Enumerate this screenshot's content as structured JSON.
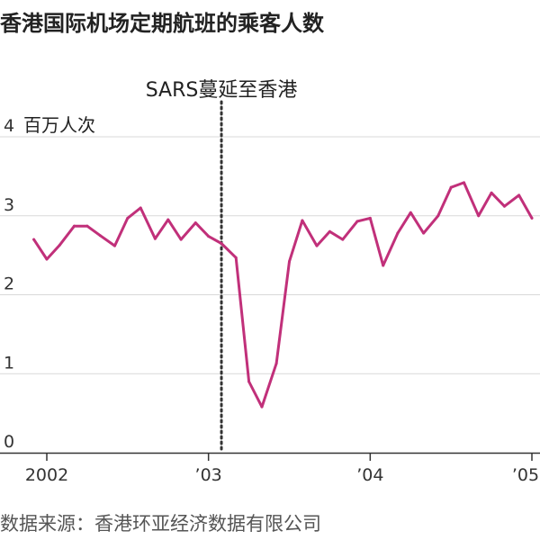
{
  "title": "香港国际机场定期航班的乘客人数",
  "source": "数据来源：香港环亚经济数据有限公司",
  "colors": {
    "series": "#c1307a",
    "grid": "#d9d9d9",
    "axis": "#333333",
    "annotation_line": "#333333"
  },
  "chart_data": {
    "type": "line",
    "title": "香港国际机场定期航班的乘客人数",
    "ylabel": "百万人次",
    "y_unit_label": "百万人次",
    "ylim": [
      0,
      4
    ],
    "yticks": [
      0,
      1,
      2,
      3,
      4
    ],
    "y_tick_labels": [
      "0",
      "1",
      "2",
      "3",
      "4"
    ],
    "xlim": [
      2001.9,
      2005.04
    ],
    "xticks": [
      2002,
      2003,
      2004,
      2005
    ],
    "x_tick_labels": [
      "2002",
      "’03",
      "’04",
      "’05"
    ],
    "grid": true,
    "series": [
      {
        "x": [
          2001.92,
          2002.0,
          2002.08,
          2002.17,
          2002.25,
          2002.33,
          2002.42,
          2002.5,
          2002.58,
          2002.67,
          2002.75,
          2002.83,
          2002.92,
          2003.0,
          2003.08,
          2003.17,
          2003.25,
          2003.33,
          2003.42,
          2003.5,
          2003.58,
          2003.67,
          2003.75,
          2003.83,
          2003.92,
          2004.0,
          2004.08,
          2004.17,
          2004.25,
          2004.33,
          2004.42,
          2004.5,
          2004.58,
          2004.67,
          2004.75,
          2004.83,
          2004.92,
          2005.0
        ],
        "values": [
          2.7,
          2.45,
          2.63,
          2.87,
          2.87,
          2.75,
          2.62,
          2.97,
          3.1,
          2.71,
          2.95,
          2.7,
          2.91,
          2.74,
          2.65,
          2.47,
          0.9,
          0.58,
          1.13,
          2.42,
          2.94,
          2.62,
          2.8,
          2.7,
          2.93,
          2.97,
          2.37,
          2.78,
          3.04,
          2.78,
          3.0,
          3.36,
          3.42,
          3.0,
          3.29,
          3.12,
          3.26,
          2.97
        ]
      }
    ],
    "annotations": [
      {
        "x": 2003.08,
        "label": "SARS蔓延至香港",
        "style": "dotted-vertical-line"
      }
    ]
  }
}
